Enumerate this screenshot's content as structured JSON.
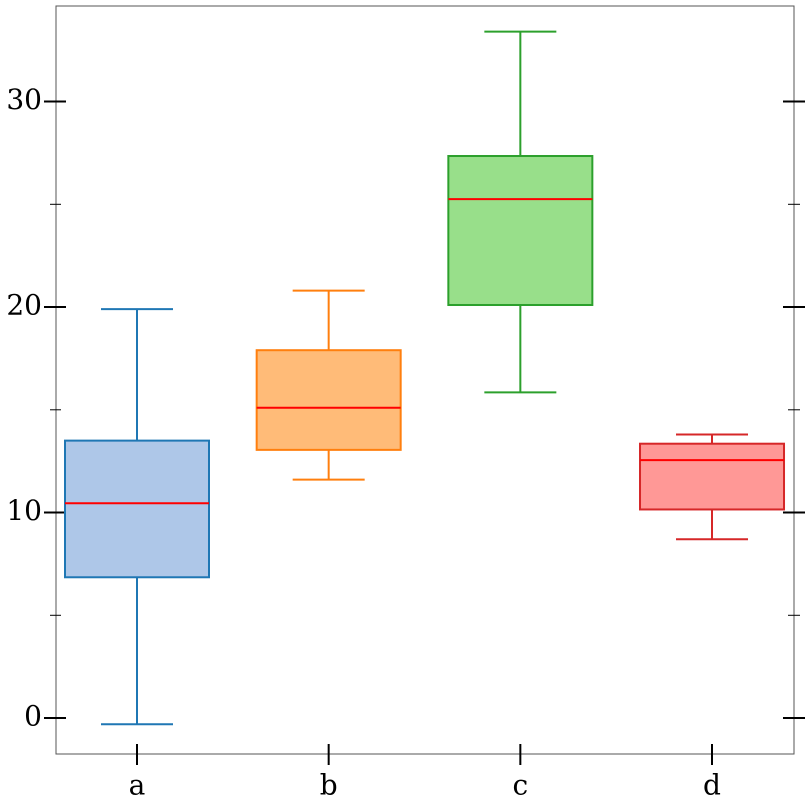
{
  "chart_data": {
    "type": "box",
    "categories": [
      "a",
      "b",
      "c",
      "d"
    ],
    "boxes": [
      {
        "min": -0.3,
        "q1": 6.85,
        "median": 10.45,
        "q3": 13.5,
        "max": 19.9,
        "color": "#1f77b4",
        "fill": "#aec7e8"
      },
      {
        "min": 11.6,
        "q1": 13.05,
        "median": 15.1,
        "q3": 17.9,
        "max": 20.8,
        "color": "#ff7f0e",
        "fill": "#ffbb78"
      },
      {
        "min": 15.85,
        "q1": 20.1,
        "median": 25.25,
        "q3": 27.35,
        "max": 33.4,
        "color": "#2ca02c",
        "fill": "#98df8a"
      },
      {
        "min": 8.7,
        "q1": 10.15,
        "median": 12.55,
        "q3": 13.35,
        "max": 13.8,
        "color": "#d62728",
        "fill": "#ff9896"
      }
    ],
    "median_color": "#ff0000",
    "ylim": [
      -1.75,
      34.65
    ],
    "yticks": [
      0,
      10,
      20,
      30
    ],
    "yminorticks": [
      5,
      15,
      25
    ]
  }
}
